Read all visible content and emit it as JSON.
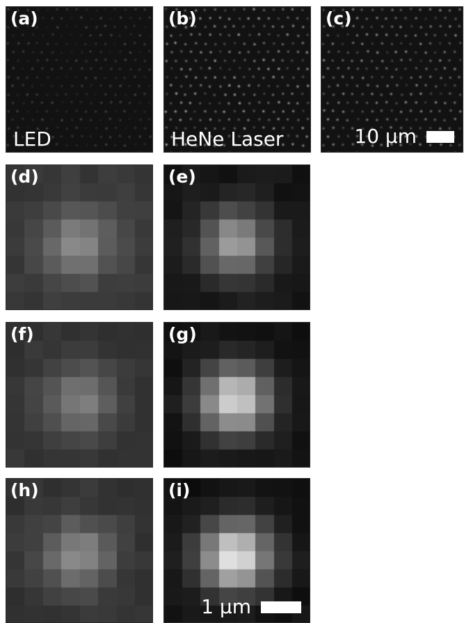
{
  "panels": [
    {
      "id": "a",
      "label": "(a)",
      "kind": "lattice",
      "brightness": 0.35,
      "caption": "LED"
    },
    {
      "id": "b",
      "label": "(b)",
      "kind": "lattice",
      "brightness": 0.85,
      "caption": "HeNe Laser"
    },
    {
      "id": "c",
      "label": "(c)",
      "kind": "lattice",
      "brightness": 0.75,
      "scalebar": "10 μm"
    },
    {
      "id": "d",
      "label": "(d)",
      "kind": "spot",
      "peak": 0.55,
      "floor": 0.22
    },
    {
      "id": "e",
      "label": "(e)",
      "kind": "spot",
      "peak": 0.62,
      "floor": 0.08
    },
    {
      "id": "f",
      "label": "(f)",
      "kind": "spot",
      "peak": 0.5,
      "floor": 0.2
    },
    {
      "id": "g",
      "label": "(g)",
      "kind": "spot",
      "peak": 0.85,
      "floor": 0.07
    },
    {
      "id": "h",
      "label": "(h)",
      "kind": "spot",
      "peak": 0.55,
      "floor": 0.2
    },
    {
      "id": "i",
      "label": "(i)",
      "kind": "spot",
      "peak": 0.9,
      "floor": 0.07,
      "scalebar": "1 μm"
    }
  ],
  "colors": {
    "background": "#ffffff",
    "text": "#ffffff",
    "scalebar": "#ffffff"
  }
}
